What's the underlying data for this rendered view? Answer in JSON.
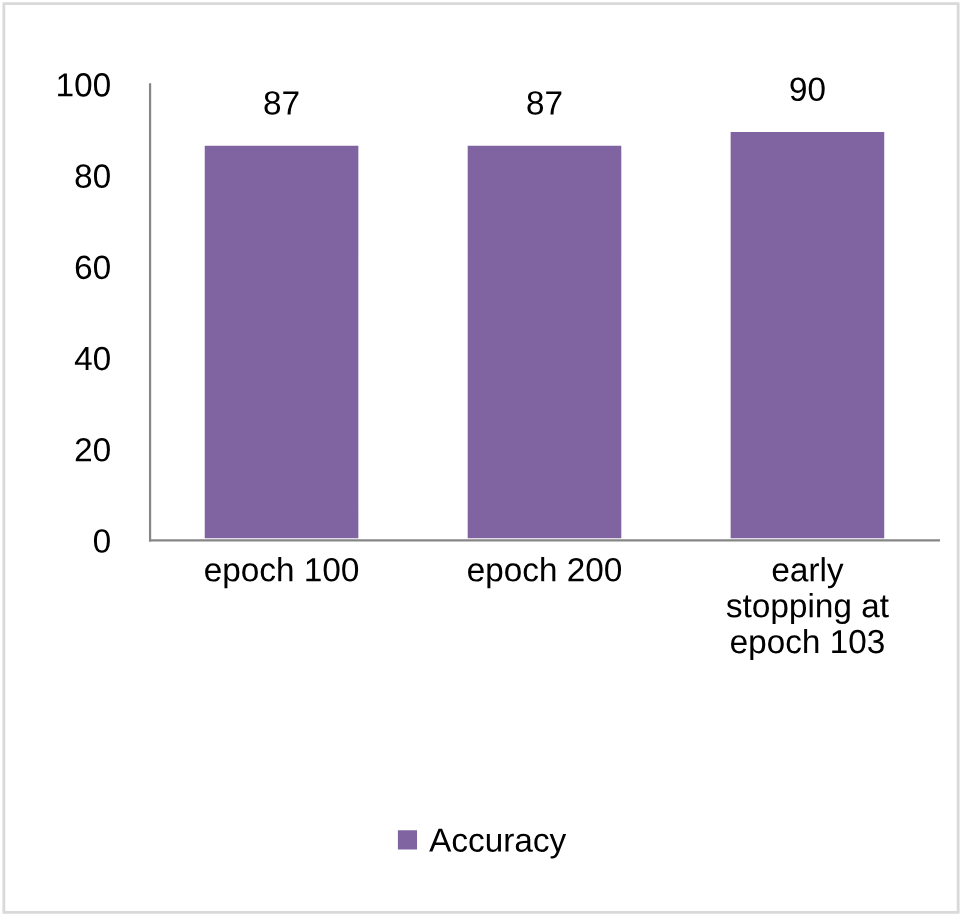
{
  "chart_data": {
    "type": "bar",
    "categories": [
      "epoch 100",
      "epoch 200",
      "early stopping at epoch 103"
    ],
    "series": [
      {
        "name": "Accuracy",
        "color": "#8064a2",
        "values": [
          87,
          87,
          90
        ]
      }
    ],
    "ylim": [
      0,
      100
    ],
    "yticks": [
      0,
      20,
      40,
      60,
      80,
      100
    ],
    "grid": false,
    "legend": "bottom",
    "data_labels": true
  }
}
